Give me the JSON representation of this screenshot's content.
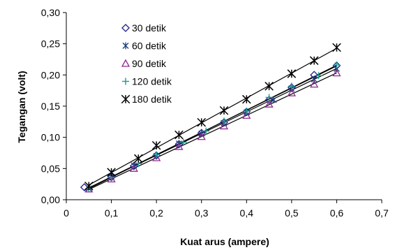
{
  "chart_data": {
    "type": "scatter",
    "title": "",
    "xlabel": "Kuat arus (ampere)",
    "ylabel": "Tegangan (volt)",
    "xlim": [
      0,
      0.7
    ],
    "ylim": [
      0,
      0.3
    ],
    "x_ticks": [
      "0",
      "0,1",
      "0,2",
      "0,3",
      "0,4",
      "0,5",
      "0,6",
      "0,7"
    ],
    "y_ticks": [
      "0,00",
      "0,05",
      "0,10",
      "0,15",
      "0,20",
      "0,25",
      "0,30"
    ],
    "grid": false,
    "legend_position": "top-left",
    "trendlines": true,
    "series": [
      {
        "name": "30 detik",
        "marker": "diamond",
        "color": "#1f1f8f",
        "x": [
          0.04,
          0.1,
          0.15,
          0.2,
          0.25,
          0.3,
          0.35,
          0.4,
          0.45,
          0.5,
          0.55,
          0.6
        ],
        "y": [
          0.02,
          0.036,
          0.054,
          0.071,
          0.089,
          0.107,
          0.124,
          0.141,
          0.16,
          0.18,
          0.2,
          0.215
        ]
      },
      {
        "name": "60 detik",
        "marker": "asterisk",
        "color": "#1a3f7a",
        "x": [
          0.05,
          0.1,
          0.15,
          0.2,
          0.25,
          0.3,
          0.35,
          0.4,
          0.46,
          0.5,
          0.55,
          0.6
        ],
        "y": [
          0.018,
          0.037,
          0.055,
          0.07,
          0.09,
          0.106,
          0.123,
          0.14,
          0.16,
          0.178,
          0.193,
          0.21
        ]
      },
      {
        "name": "90 detik",
        "marker": "triangle",
        "color": "#8e2a8e",
        "x": [
          0.05,
          0.1,
          0.15,
          0.2,
          0.25,
          0.3,
          0.35,
          0.4,
          0.45,
          0.5,
          0.55,
          0.6
        ],
        "y": [
          0.017,
          0.033,
          0.05,
          0.067,
          0.085,
          0.101,
          0.118,
          0.135,
          0.153,
          0.171,
          0.185,
          0.203
        ]
      },
      {
        "name": "120 detik",
        "marker": "plus",
        "color": "#1f9a8f",
        "x": [
          0.05,
          0.1,
          0.16,
          0.2,
          0.26,
          0.31,
          0.35,
          0.4,
          0.45,
          0.5,
          0.56,
          0.6
        ],
        "y": [
          0.018,
          0.036,
          0.058,
          0.072,
          0.092,
          0.11,
          0.126,
          0.142,
          0.164,
          0.182,
          0.199,
          0.216
        ]
      },
      {
        "name": "180 detik",
        "marker": "star",
        "color": "#000000",
        "x": [
          0.05,
          0.1,
          0.16,
          0.2,
          0.25,
          0.3,
          0.35,
          0.4,
          0.45,
          0.5,
          0.55,
          0.6
        ],
        "y": [
          0.022,
          0.044,
          0.066,
          0.087,
          0.104,
          0.124,
          0.143,
          0.161,
          0.182,
          0.202,
          0.223,
          0.244
        ]
      }
    ]
  }
}
